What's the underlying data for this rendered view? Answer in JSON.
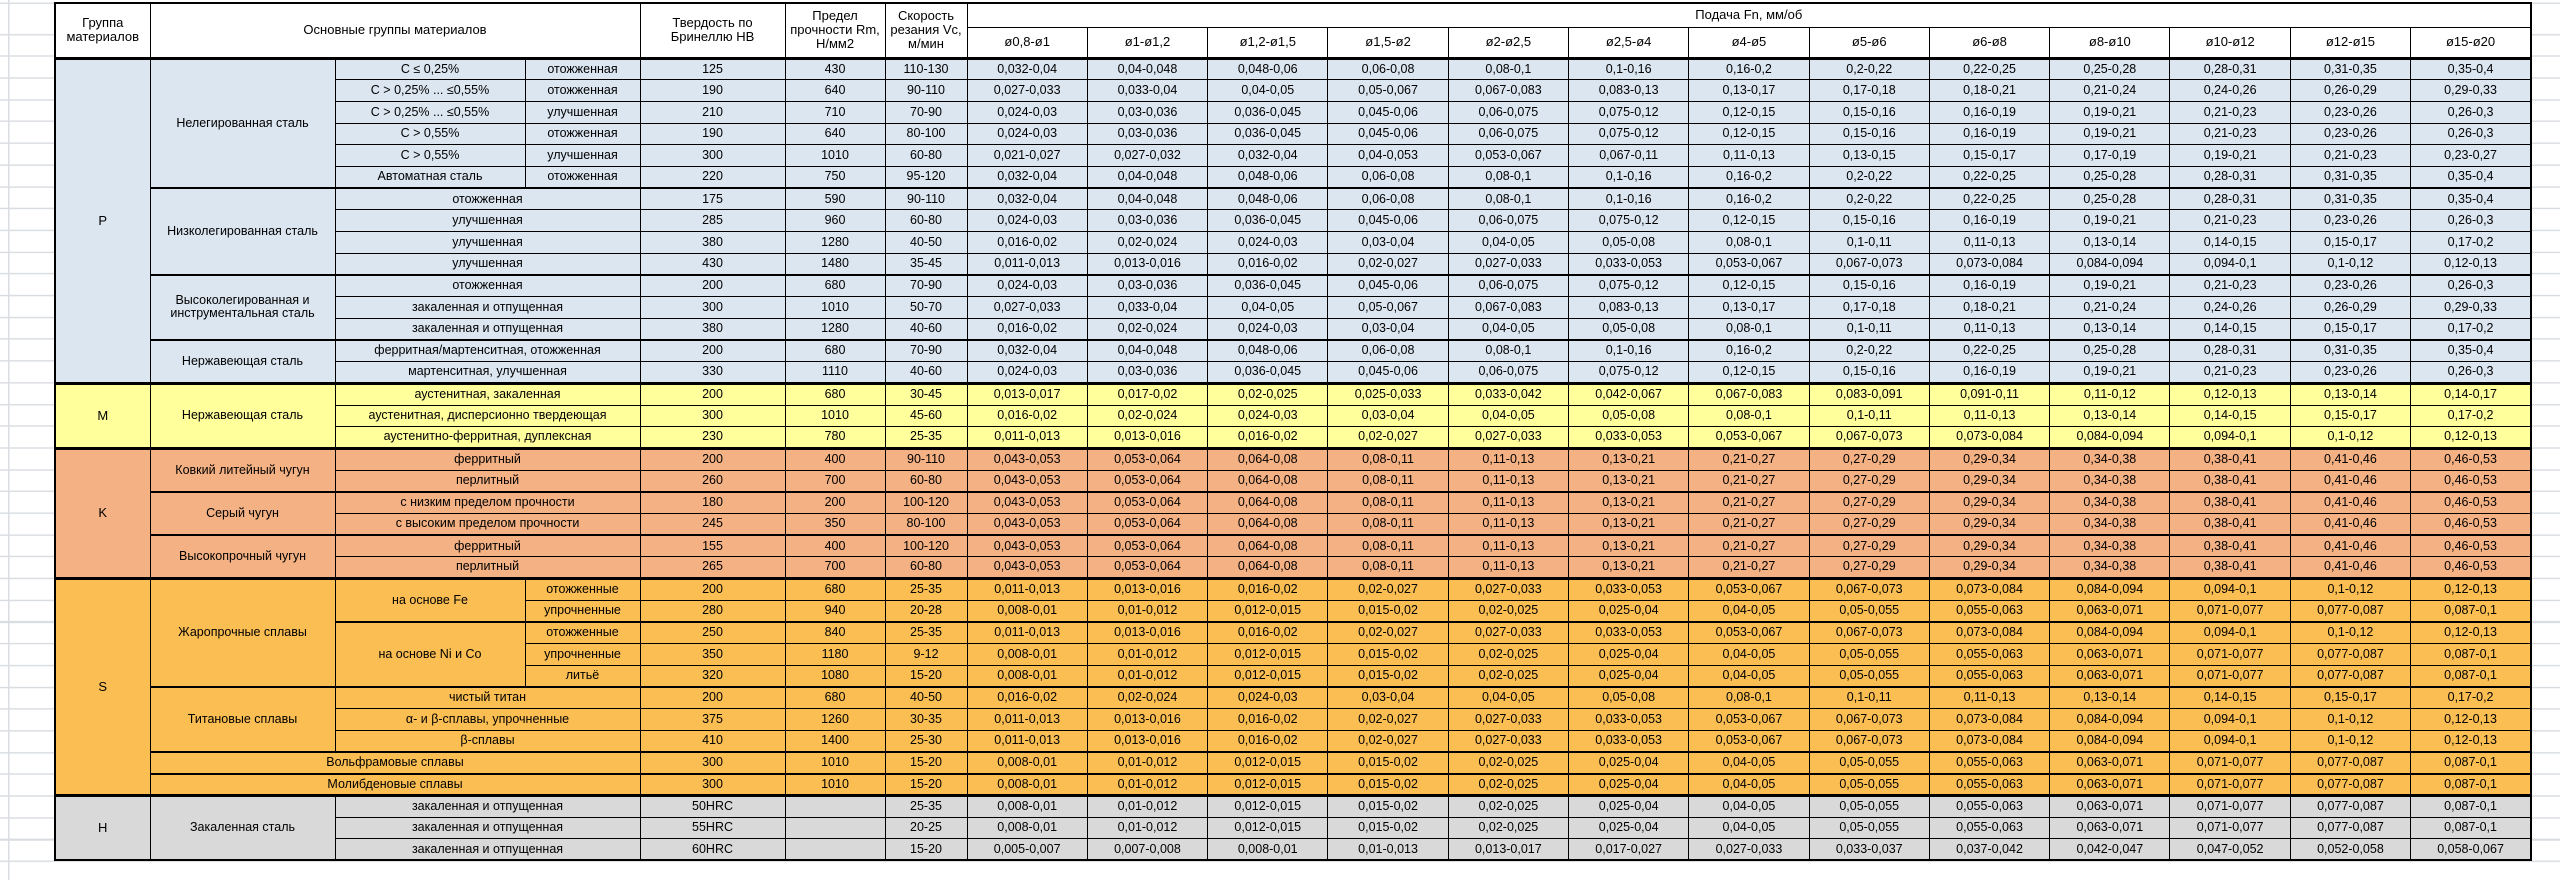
{
  "header": {
    "group": "Группа материалов",
    "main_groups": "Основные группы материалов",
    "hardness": "Твердость по Бринеллю НВ",
    "strength": "Предел прочности Rm, Н/мм2",
    "speed": "Скорость резания Vc, м/мин",
    "feed": "Подача Fn, мм/об",
    "feed_columns": [
      "ø0,8-ø1",
      "ø1-ø1,2",
      "ø1,2-ø1,5",
      "ø1,5-ø2",
      "ø2-ø2,5",
      "ø2,5-ø4",
      "ø4-ø5",
      "ø5-ø6",
      "ø6-ø8",
      "ø8-ø10",
      "ø10-ø12",
      "ø12-ø15",
      "ø15-ø20"
    ]
  },
  "feed_patterns": {
    "A": [
      "0,032-0,04",
      "0,04-0,048",
      "0,048-0,06",
      "0,06-0,08",
      "0,08-0,1",
      "0,1-0,16",
      "0,16-0,2",
      "0,2-0,22",
      "0,22-0,25",
      "0,25-0,28",
      "0,28-0,31",
      "0,31-0,35",
      "0,35-0,4"
    ],
    "B": [
      "0,027-0,033",
      "0,033-0,04",
      "0,04-0,05",
      "0,05-0,067",
      "0,067-0,083",
      "0,083-0,13",
      "0,13-0,17",
      "0,17-0,18",
      "0,18-0,21",
      "0,21-0,24",
      "0,24-0,26",
      "0,26-0,29",
      "0,29-0,33"
    ],
    "C": [
      "0,024-0,03",
      "0,03-0,036",
      "0,036-0,045",
      "0,045-0,06",
      "0,06-0,075",
      "0,075-0,12",
      "0,12-0,15",
      "0,15-0,16",
      "0,16-0,19",
      "0,19-0,21",
      "0,21-0,23",
      "0,23-0,26",
      "0,26-0,3"
    ],
    "D": [
      "0,021-0,027",
      "0,027-0,032",
      "0,032-0,04",
      "0,04-0,053",
      "0,053-0,067",
      "0,067-0,11",
      "0,11-0,13",
      "0,13-0,15",
      "0,15-0,17",
      "0,17-0,19",
      "0,19-0,21",
      "0,21-0,23",
      "0,23-0,27"
    ],
    "E": [
      "0,016-0,02",
      "0,02-0,024",
      "0,024-0,03",
      "0,03-0,04",
      "0,04-0,05",
      "0,05-0,08",
      "0,08-0,1",
      "0,1-0,11",
      "0,11-0,13",
      "0,13-0,14",
      "0,14-0,15",
      "0,15-0,17",
      "0,17-0,2"
    ],
    "F": [
      "0,011-0,013",
      "0,013-0,016",
      "0,016-0,02",
      "0,02-0,027",
      "0,027-0,033",
      "0,033-0,053",
      "0,053-0,067",
      "0,067-0,073",
      "0,073-0,084",
      "0,084-0,094",
      "0,094-0,1",
      "0,1-0,12",
      "0,12-0,13"
    ],
    "G": [
      "0,013-0,017",
      "0,017-0,02",
      "0,02-0,025",
      "0,025-0,033",
      "0,033-0,042",
      "0,042-0,067",
      "0,067-0,083",
      "0,083-0,091",
      "0,091-0,11",
      "0,11-0,12",
      "0,12-0,13",
      "0,13-0,14",
      "0,14-0,17"
    ],
    "K": [
      "0,043-0,053",
      "0,053-0,064",
      "0,064-0,08",
      "0,08-0,11",
      "0,11-0,13",
      "0,13-0,21",
      "0,21-0,27",
      "0,27-0,29",
      "0,29-0,34",
      "0,34-0,38",
      "0,38-0,41",
      "0,41-0,46",
      "0,46-0,53"
    ],
    "H8": [
      "0,008-0,01",
      "0,01-0,012",
      "0,012-0,015",
      "0,015-0,02",
      "0,02-0,025",
      "0,025-0,04",
      "0,04-0,05",
      "0,05-0,055",
      "0,055-0,063",
      "0,063-0,071",
      "0,071-0,077",
      "0,077-0,087",
      "0,087-0,1"
    ],
    "L": [
      "0,005-0,007",
      "0,007-0,008",
      "0,008-0,01",
      "0,01-0,013",
      "0,013-0,017",
      "0,017-0,027",
      "0,027-0,033",
      "0,033-0,037",
      "0,037-0,042",
      "0,042-0,047",
      "0,047-0,052",
      "0,052-0,058",
      "0,058-0,067"
    ]
  },
  "groups": [
    {
      "code": "P",
      "fill": "#dce6f1",
      "materials": [
        {
          "name": "Нелегированная сталь",
          "rows": [
            {
              "spec": "C ≤ 0,25%",
              "state": "отожженная",
              "hb": "125",
              "rm": "430",
              "vc": "110-130",
              "feeds": "A"
            },
            {
              "spec": "C > 0,25% ... ≤0,55%",
              "state": "отожженная",
              "hb": "190",
              "rm": "640",
              "vc": "90-110",
              "feeds": "B"
            },
            {
              "spec": "C > 0,25% ... ≤0,55%",
              "state": "улучшенная",
              "hb": "210",
              "rm": "710",
              "vc": "70-90",
              "feeds": "C"
            },
            {
              "spec": "C > 0,55%",
              "state": "отожженная",
              "hb": "190",
              "rm": "640",
              "vc": "80-100",
              "feeds": "C"
            },
            {
              "spec": "C > 0,55%",
              "state": "улучшенная",
              "hb": "300",
              "rm": "1010",
              "vc": "60-80",
              "feeds": "D"
            },
            {
              "spec": "Автоматная сталь",
              "state": "отожженная",
              "hb": "220",
              "rm": "750",
              "vc": "95-120",
              "feeds": "A"
            }
          ]
        },
        {
          "name": "Низколегированная сталь",
          "rows": [
            {
              "label": "отожженная",
              "hb": "175",
              "rm": "590",
              "vc": "90-110",
              "feeds": "A"
            },
            {
              "label": "улучшенная",
              "hb": "285",
              "rm": "960",
              "vc": "60-80",
              "feeds": "C"
            },
            {
              "label": "улучшенная",
              "hb": "380",
              "rm": "1280",
              "vc": "40-50",
              "feeds": "E"
            },
            {
              "label": "улучшенная",
              "hb": "430",
              "rm": "1480",
              "vc": "35-45",
              "feeds": "F"
            }
          ]
        },
        {
          "name": "Высоколегированная и инструментальная сталь",
          "rows": [
            {
              "label": "отожженная",
              "hb": "200",
              "rm": "680",
              "vc": "70-90",
              "feeds": "C"
            },
            {
              "label": "закаленная и отпущенная",
              "hb": "300",
              "rm": "1010",
              "vc": "50-70",
              "feeds": "B"
            },
            {
              "label": "закаленная и отпущенная",
              "hb": "380",
              "rm": "1280",
              "vc": "40-60",
              "feeds": "E"
            }
          ]
        },
        {
          "name": "Нержавеющая сталь",
          "rows": [
            {
              "label": "ферритная/мартенситная, отожженная",
              "hb": "200",
              "rm": "680",
              "vc": "70-90",
              "feeds": "A"
            },
            {
              "label": "мартенситная, улучшенная",
              "hb": "330",
              "rm": "1110",
              "vc": "40-60",
              "feeds": "C"
            }
          ]
        }
      ]
    },
    {
      "code": "M",
      "fill": "#ffff9c",
      "materials": [
        {
          "name": "Нержавеющая сталь",
          "rows": [
            {
              "label": "аустенитная, закаленная",
              "hb": "200",
              "rm": "680",
              "vc": "30-45",
              "feeds": "G"
            },
            {
              "label": "аустенитная, дисперсионно твердеющая",
              "hb": "300",
              "rm": "1010",
              "vc": "45-60",
              "feeds": "E"
            },
            {
              "label": "аустенитно-ферритная, дуплексная",
              "hb": "230",
              "rm": "780",
              "vc": "25-35",
              "feeds": "F"
            }
          ]
        }
      ]
    },
    {
      "code": "K",
      "fill": "#f4b183",
      "materials": [
        {
          "name": "Ковкий литейный чугун",
          "rows": [
            {
              "label": "ферритный",
              "hb": "200",
              "rm": "400",
              "vc": "90-110",
              "feeds": "K"
            },
            {
              "label": "перлитный",
              "hb": "260",
              "rm": "700",
              "vc": "60-80",
              "feeds": "K"
            }
          ]
        },
        {
          "name": "Серый чугун",
          "rows": [
            {
              "label": "с низким пределом прочности",
              "hb": "180",
              "rm": "200",
              "vc": "100-120",
              "feeds": "K"
            },
            {
              "label": "с высоким пределом прочности",
              "hb": "245",
              "rm": "350",
              "vc": "80-100",
              "feeds": "K"
            }
          ]
        },
        {
          "name": "Высокопрочный чугун",
          "rows": [
            {
              "label": "ферритный",
              "hb": "155",
              "rm": "400",
              "vc": "100-120",
              "feeds": "K"
            },
            {
              "label": "перлитный",
              "hb": "265",
              "rm": "700",
              "vc": "60-80",
              "feeds": "K"
            }
          ]
        }
      ]
    },
    {
      "code": "S",
      "fill": "#fbbe53",
      "materials": [
        {
          "name": "Жаропрочные сплавы",
          "sub_groups": [
            {
              "name": "на основе Fe",
              "rows": [
                {
                  "state": "отожженные",
                  "hb": "200",
                  "rm": "680",
                  "vc": "25-35",
                  "feeds": "F"
                },
                {
                  "state": "упрочненные",
                  "hb": "280",
                  "rm": "940",
                  "vc": "20-28",
                  "feeds": "H8"
                }
              ]
            },
            {
              "name": "на основе Ni и Co",
              "rows": [
                {
                  "state": "отожженные",
                  "hb": "250",
                  "rm": "840",
                  "vc": "25-35",
                  "feeds": "F"
                },
                {
                  "state": "упрочненные",
                  "hb": "350",
                  "rm": "1180",
                  "vc": "9-12",
                  "feeds": "H8"
                },
                {
                  "state": "литьё",
                  "hb": "320",
                  "rm": "1080",
                  "vc": "15-20",
                  "feeds": "H8"
                }
              ]
            }
          ]
        },
        {
          "name": "Титановые сплавы",
          "rows": [
            {
              "label": "чистый титан",
              "hb": "200",
              "rm": "680",
              "vc": "40-50",
              "feeds": "E"
            },
            {
              "label": "α- и β-сплавы, упрочненные",
              "hb": "375",
              "rm": "1260",
              "vc": "30-35",
              "feeds": "F"
            },
            {
              "label": "β-сплавы",
              "hb": "410",
              "rm": "1400",
              "vc": "25-30",
              "feeds": "F"
            }
          ]
        },
        {
          "name": "Вольфрамовые сплавы",
          "span3": true,
          "row": {
            "hb": "300",
            "rm": "1010",
            "vc": "15-20",
            "feeds": "H8"
          }
        },
        {
          "name": "Молибденовые сплавы",
          "span3": true,
          "row": {
            "hb": "300",
            "rm": "1010",
            "vc": "15-20",
            "feeds": "H8"
          }
        }
      ]
    },
    {
      "code": "H",
      "fill": "#d9d9d9",
      "materials": [
        {
          "name": "Закаленная сталь",
          "rows": [
            {
              "label": "закаленная и отпущенная",
              "hb": "50HRC",
              "rm": "",
              "vc": "25-35",
              "feeds": "H8"
            },
            {
              "label": "закаленная и отпущенная",
              "hb": "55HRC",
              "rm": "",
              "vc": "20-25",
              "feeds": "H8"
            },
            {
              "label": "закаленная и отпущенная",
              "hb": "60HRC",
              "rm": "",
              "vc": "15-20",
              "feeds": "L"
            }
          ]
        }
      ]
    }
  ]
}
